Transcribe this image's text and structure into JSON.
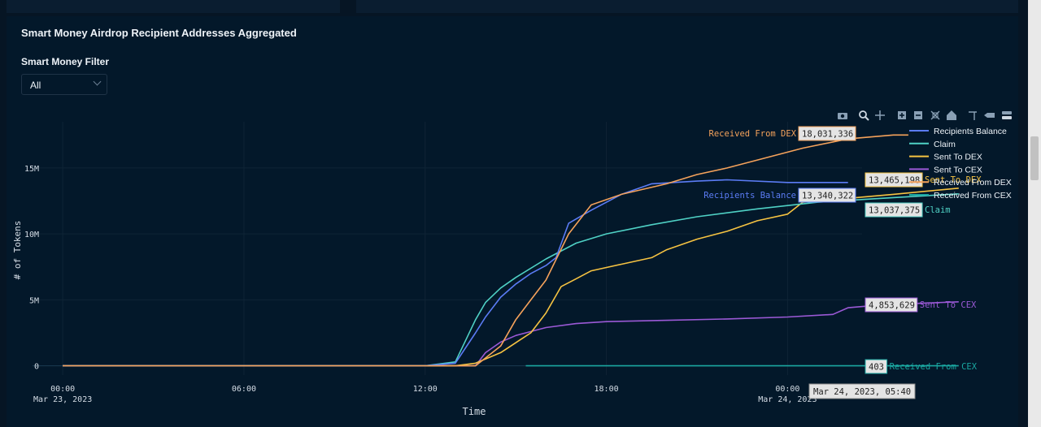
{
  "title": "Smart Money Airdrop Recipient Addresses Aggregated",
  "filter": {
    "label": "Smart Money Filter",
    "value": "All"
  },
  "toolbar": [
    "camera-icon",
    "zoom-icon",
    "pan-icon",
    "zoom-in-icon",
    "zoom-out-icon",
    "autoscale-icon",
    "reset-axes-icon",
    "spike-lines-icon",
    "hover-closest-icon",
    "hover-compare-icon"
  ],
  "colors": {
    "recipients_balance": "#5b7cf5",
    "claim": "#4fd1c5",
    "sent_to_dex": "#f6c342",
    "sent_to_cex": "#9b59d6",
    "received_from_dex": "#f5a25b",
    "received_from_cex": "#1aa6a0"
  },
  "chart_data": {
    "type": "line",
    "title": "",
    "xlabel": "Time",
    "ylabel": "# of Tokens",
    "ylim": [
      -700000,
      18500000
    ],
    "xrange": [
      "2023-03-22 23:00",
      "2023-03-24 07:35"
    ],
    "x_ticks": [
      {
        "t": "2023-03-23 00:00",
        "label": "00:00",
        "sub": "Mar 23, 2023"
      },
      {
        "t": "2023-03-23 06:00",
        "label": "06:00",
        "sub": ""
      },
      {
        "t": "2023-03-23 12:00",
        "label": "12:00",
        "sub": ""
      },
      {
        "t": "2023-03-23 18:00",
        "label": "18:00",
        "sub": ""
      },
      {
        "t": "2023-03-24 00:00",
        "label": "00:00",
        "sub": "Mar 24, 2023"
      }
    ],
    "y_ticks": [
      {
        "v": 0,
        "label": "0"
      },
      {
        "v": 5000000,
        "label": "5M"
      },
      {
        "v": 10000000,
        "label": "10M"
      },
      {
        "v": 15000000,
        "label": "15M"
      }
    ],
    "legend_position": "top-right",
    "hover_x_label": "Mar 24, 2023, 05:40",
    "series": [
      {
        "name": "Recipients Balance",
        "key": "recipients_balance",
        "hover": "13,340,322",
        "x": [
          "2023-03-23 00:00",
          "2023-03-23 12:00",
          "2023-03-23 13:00",
          "2023-03-23 13:40",
          "2023-03-23 14:00",
          "2023-03-23 14:30",
          "2023-03-23 15:00",
          "2023-03-23 15:30",
          "2023-03-23 16:00",
          "2023-03-23 16:20",
          "2023-03-23 16:45",
          "2023-03-23 17:30",
          "2023-03-23 18:30",
          "2023-03-23 19:30",
          "2023-03-23 21:00",
          "2023-03-23 22:00",
          "2023-03-24 00:00",
          "2023-03-24 02:00"
        ],
        "y": [
          0,
          0,
          200000,
          2500000,
          3700000,
          5200000,
          6200000,
          7000000,
          7600000,
          8200000,
          10800000,
          11800000,
          13000000,
          13800000,
          14000000,
          14100000,
          13900000,
          13900000
        ]
      },
      {
        "name": "Claim",
        "key": "claim",
        "hover": "13,037,375",
        "x": [
          "2023-03-23 00:00",
          "2023-03-23 12:00",
          "2023-03-23 13:00",
          "2023-03-23 13:40",
          "2023-03-23 14:00",
          "2023-03-23 14:30",
          "2023-03-23 15:00",
          "2023-03-23 16:00",
          "2023-03-23 17:00",
          "2023-03-23 18:00",
          "2023-03-23 19:30",
          "2023-03-23 21:00",
          "2023-03-23 23:00",
          "2023-03-24 01:00",
          "2023-03-24 03:30",
          "2023-03-24 05:40"
        ],
        "y": [
          0,
          0,
          300000,
          3500000,
          4800000,
          5900000,
          6700000,
          8100000,
          9300000,
          10000000,
          10700000,
          11300000,
          11900000,
          12400000,
          12750000,
          13037375
        ]
      },
      {
        "name": "Sent To DEX",
        "key": "sent_to_dex",
        "hover": "13,465,198",
        "x": [
          "2023-03-23 00:00",
          "2023-03-23 13:00",
          "2023-03-23 13:40",
          "2023-03-23 14:30",
          "2023-03-23 15:30",
          "2023-03-23 16:00",
          "2023-03-23 16:30",
          "2023-03-23 17:00",
          "2023-03-23 17:30",
          "2023-03-23 18:30",
          "2023-03-23 19:30",
          "2023-03-23 20:00",
          "2023-03-23 21:00",
          "2023-03-23 22:00",
          "2023-03-23 23:00",
          "2023-03-24 00:00",
          "2023-03-24 00:30",
          "2023-03-24 02:00",
          "2023-03-24 03:30",
          "2023-03-24 05:40"
        ],
        "y": [
          0,
          0,
          200000,
          1000000,
          2500000,
          4000000,
          6000000,
          6600000,
          7200000,
          7700000,
          8200000,
          8800000,
          9600000,
          10200000,
          11000000,
          11500000,
          12400000,
          12700000,
          13000000,
          13465198
        ]
      },
      {
        "name": "Sent To CEX",
        "key": "sent_to_cex",
        "hover": "4,853,629",
        "x": [
          "2023-03-23 00:00",
          "2023-03-23 13:40",
          "2023-03-23 14:00",
          "2023-03-23 14:30",
          "2023-03-23 15:00",
          "2023-03-23 16:00",
          "2023-03-23 17:00",
          "2023-03-23 18:00",
          "2023-03-23 20:00",
          "2023-03-23 22:00",
          "2023-03-24 00:00",
          "2023-03-24 01:30",
          "2023-03-24 02:00",
          "2023-03-24 03:00",
          "2023-03-24 04:30",
          "2023-03-24 05:40"
        ],
        "y": [
          0,
          0,
          1000000,
          1800000,
          2300000,
          2900000,
          3200000,
          3350000,
          3450000,
          3550000,
          3700000,
          3900000,
          4400000,
          4600000,
          4750000,
          4853629
        ]
      },
      {
        "name": "Received From DEX",
        "key": "received_from_dex",
        "hover": "18,031,336",
        "x": [
          "2023-03-23 00:00",
          "2023-03-23 13:40",
          "2023-03-23 14:30",
          "2023-03-23 15:00",
          "2023-03-23 15:30",
          "2023-03-23 16:00",
          "2023-03-23 16:45",
          "2023-03-23 17:30",
          "2023-03-23 18:30",
          "2023-03-23 20:00",
          "2023-03-23 21:00",
          "2023-03-23 22:00",
          "2023-03-23 23:00",
          "2023-03-24 00:30",
          "2023-03-24 02:00",
          "2023-03-24 03:30",
          "2023-03-24 04:00"
        ],
        "y": [
          0,
          0,
          1500000,
          3500000,
          5000000,
          6500000,
          10000000,
          12200000,
          13000000,
          13800000,
          14500000,
          15000000,
          15600000,
          16500000,
          17200000,
          17500000,
          17500000
        ]
      },
      {
        "name": "Received From CEX",
        "key": "received_from_cex",
        "hover": "403",
        "x": [
          "2023-03-23 15:20",
          "2023-03-24 05:40"
        ],
        "y": [
          403,
          403
        ]
      }
    ]
  }
}
